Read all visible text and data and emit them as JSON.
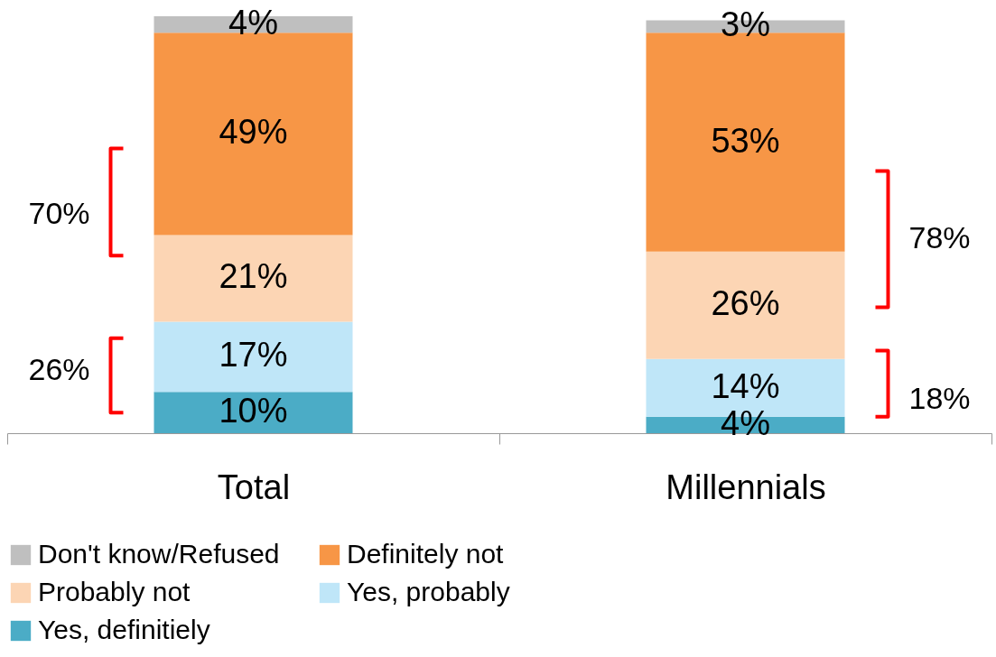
{
  "chart_data": {
    "type": "bar",
    "stacked": true,
    "categories": [
      "Total",
      "Millennials"
    ],
    "series": [
      {
        "name": "Yes, definitiely",
        "color": "#4bacc6",
        "values": [
          10,
          4
        ],
        "value_labels": [
          "10%",
          "4%"
        ]
      },
      {
        "name": "Yes, probably",
        "color": "#bfe6f8",
        "values": [
          17,
          14
        ],
        "value_labels": [
          "17%",
          "14%"
        ]
      },
      {
        "name": "Probably not",
        "color": "#fcd5b4",
        "values": [
          21,
          26
        ],
        "value_labels": [
          "21%",
          "26%"
        ]
      },
      {
        "name": "Definitely not",
        "color": "#f79646",
        "values": [
          49,
          53
        ],
        "value_labels": [
          "49%",
          "53%"
        ]
      },
      {
        "name": "Don't know/Refused",
        "color": "#bfbfbf",
        "values": [
          4,
          3
        ],
        "value_labels": [
          "4%",
          "3%"
        ]
      }
    ],
    "annotations": [
      "70%",
      "26%",
      "78%",
      "18%"
    ],
    "legend": "bottom"
  }
}
